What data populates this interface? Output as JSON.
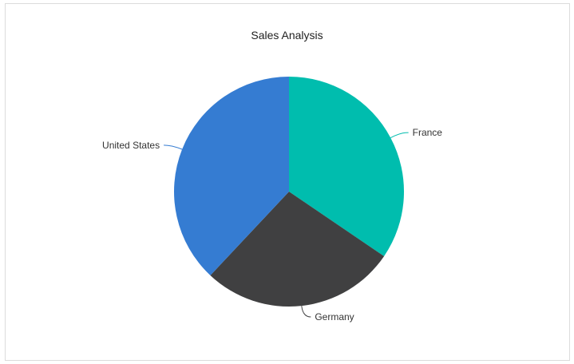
{
  "chart_data": {
    "type": "pie",
    "title": "Sales Analysis",
    "categories": [
      "France",
      "Germany",
      "United States"
    ],
    "values": [
      34.5,
      27.5,
      38.0
    ],
    "colors": [
      "#00BDAE",
      "#404041",
      "#357CD2"
    ],
    "legend": "none",
    "data_labels": "outside-with-connectors"
  }
}
